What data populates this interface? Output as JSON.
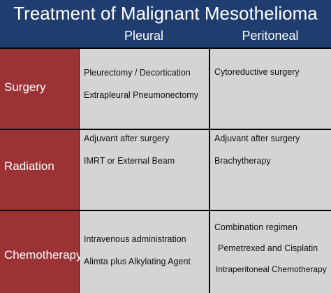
{
  "title": "Treatment of Malignant Mesothelioma",
  "columns": {
    "pleural": "Pleural",
    "peritoneal": "Peritoneal"
  },
  "rows": [
    {
      "label": "Surgery",
      "pleural": [
        "Pleurectomy / Decortication",
        "Extrapleural Pneumonectomy"
      ],
      "peritoneal": [
        "Cytoreductive surgery"
      ]
    },
    {
      "label": "Radiation",
      "pleural": [
        "Adjuvant after surgery",
        "IMRT or External Beam"
      ],
      "peritoneal": [
        "Adjuvant after surgery",
        "Brachytherapy"
      ]
    },
    {
      "label": "Chemotherapy",
      "pleural": [
        "Intravenous administration",
        "Alimta plus Alkylating Agent"
      ],
      "peritoneal": [
        "Combination regimen",
        "Pemetrexed and Cisplatin",
        "Intraperitoneal Chemotherapy"
      ]
    }
  ],
  "colors": {
    "header_bg": "#1f3d6e",
    "row_label_bg": "#9b3236",
    "cell_bg": "#d4d4d4",
    "grid_line": "#000000"
  }
}
